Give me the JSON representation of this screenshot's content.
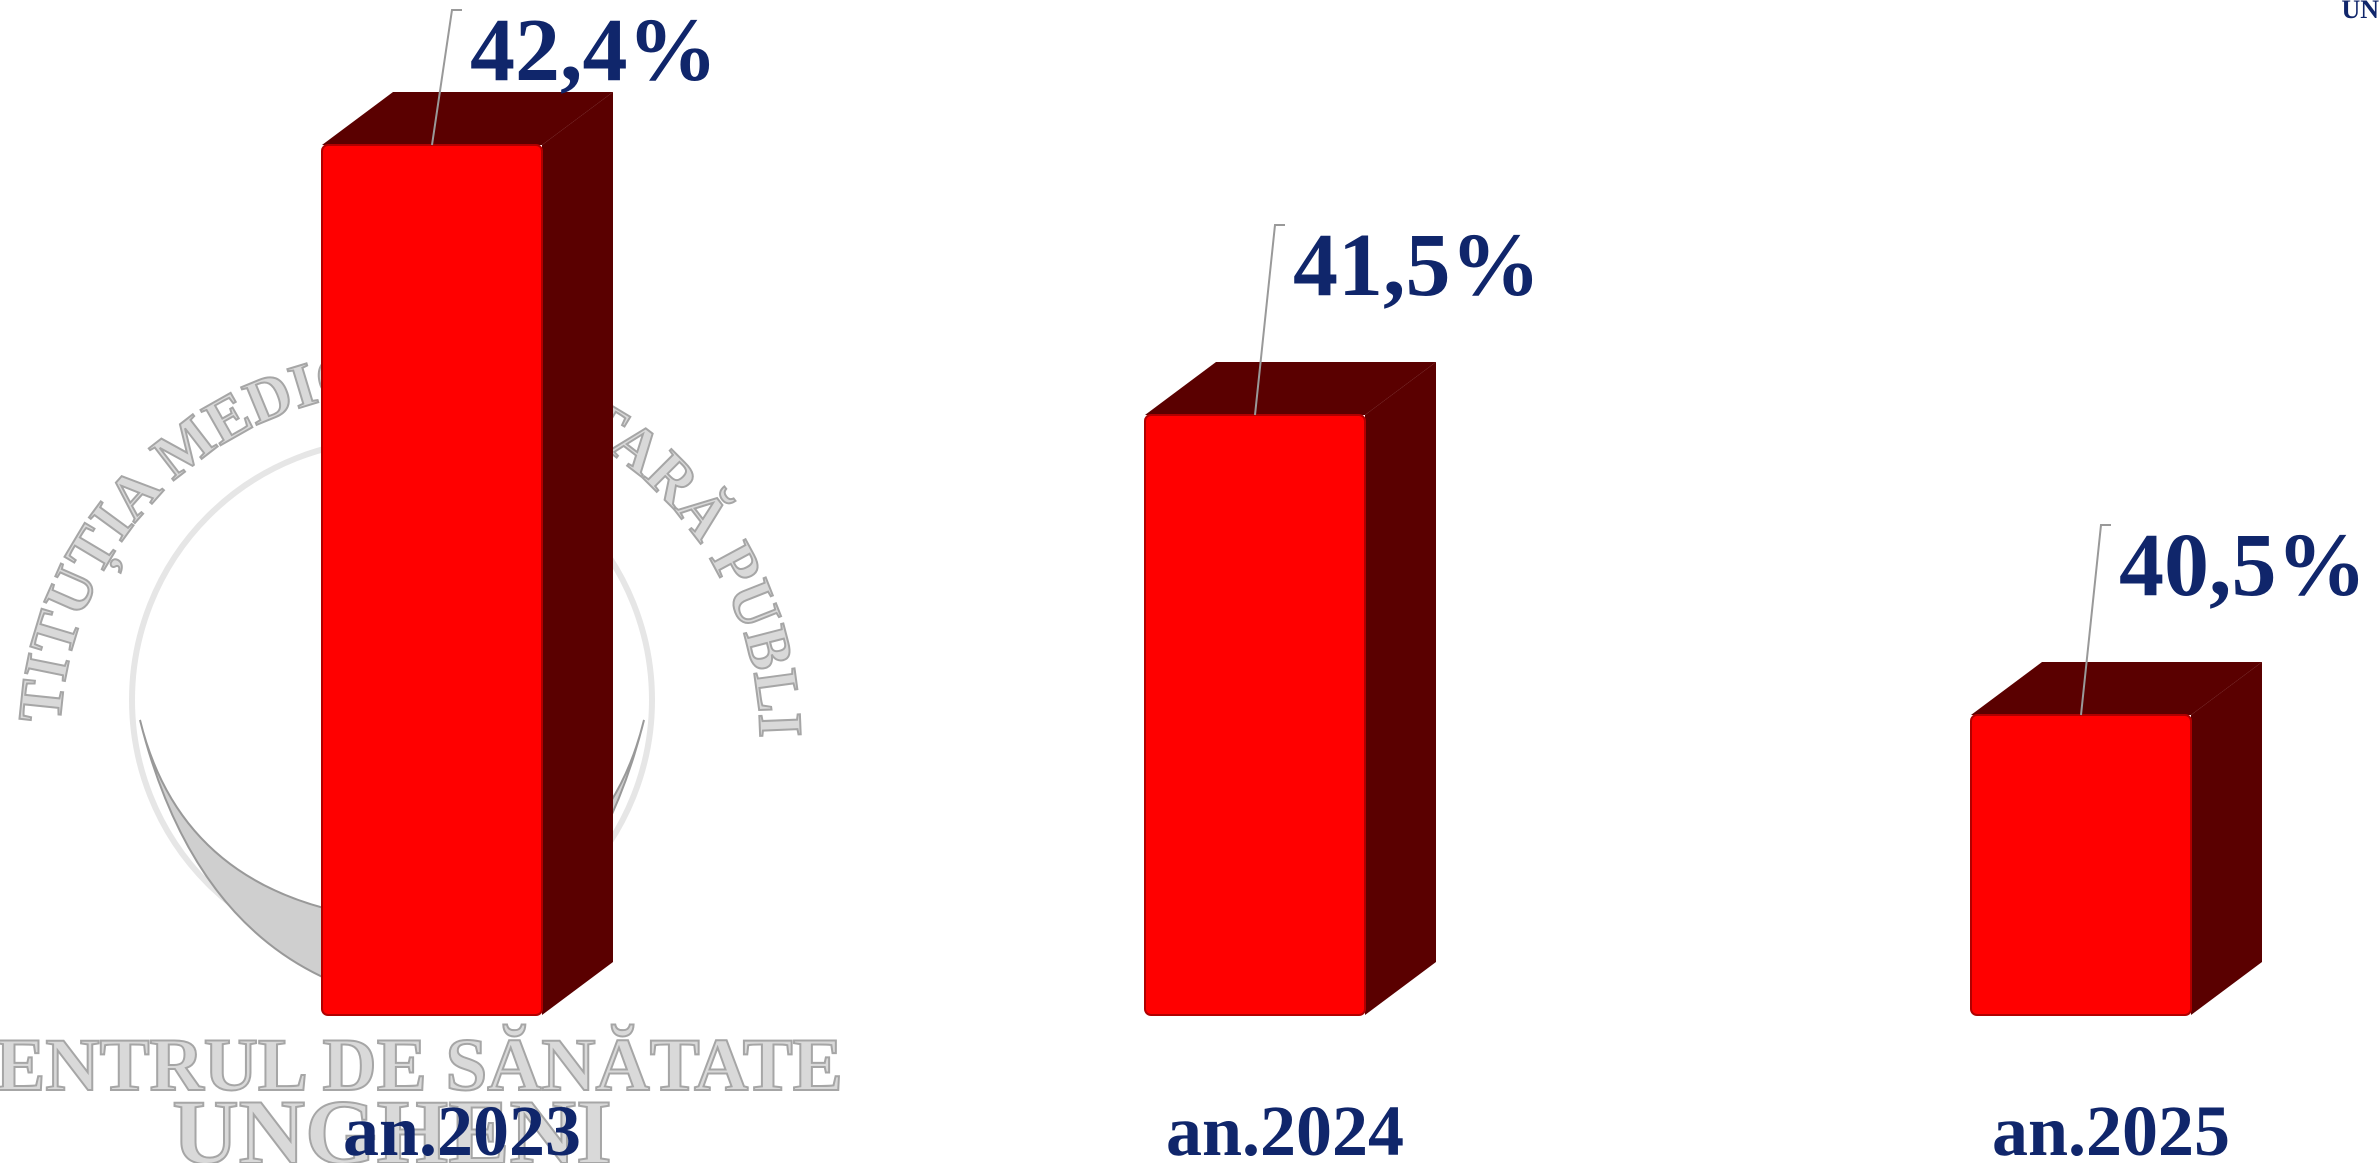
{
  "chart_data": {
    "type": "bar",
    "categories": [
      "an.2023",
      "an.2024",
      "an.2025"
    ],
    "values": [
      42.4,
      41.5,
      40.5
    ],
    "value_labels": [
      "42,4%",
      "41,5%",
      "40,5%"
    ],
    "color": "#ff0000",
    "side_color": "#5a0000",
    "label_color": "#10266b",
    "ylim": [
      39.5,
      43
    ],
    "grid": false
  },
  "watermark": {
    "arc": "INSTITUȚIA MEDICO-SANITARĂ PUBLICĂ",
    "line1": "CENTRUL DE SĂNĂTATE",
    "line2": "UNGHENI"
  },
  "corner": "UN"
}
